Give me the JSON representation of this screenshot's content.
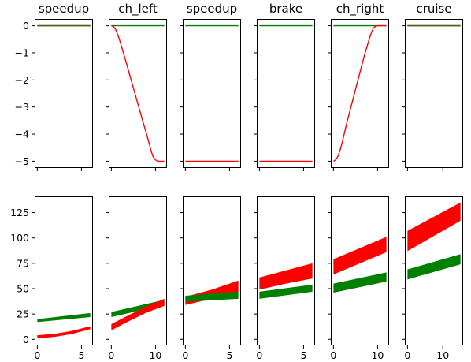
{
  "figure": {
    "title": "",
    "colors": {
      "red": "#ff0000",
      "green": "#008000",
      "overlap": "#5a5a1e",
      "axes": "#000000"
    }
  },
  "chart_data": [
    {
      "type": "line",
      "row": 1,
      "column": 1,
      "title": "speedup",
      "xlim": [
        -0.3,
        6.3
      ],
      "ylim": [
        -5.25,
        0.25
      ],
      "show_y_ticks": true,
      "series": [
        {
          "color": "red",
          "points": [
            [
              0,
              0
            ],
            [
              6,
              0
            ]
          ]
        },
        {
          "color": "green",
          "points": [
            [
              0,
              0
            ],
            [
              6,
              0
            ]
          ]
        }
      ]
    },
    {
      "type": "line",
      "row": 1,
      "column": 2,
      "title": "ch_left",
      "xlim": [
        -0.6,
        12.6
      ],
      "ylim": [
        -5.25,
        0.25
      ],
      "show_y_ticks": false,
      "series": [
        {
          "color": "green",
          "points": [
            [
              0,
              0
            ],
            [
              12,
              0
            ]
          ]
        },
        {
          "color": "red",
          "points": [
            [
              0,
              0
            ],
            [
              0.5,
              -0.03
            ],
            [
              1,
              -0.15
            ],
            [
              1.5,
              -0.35
            ],
            [
              2,
              -0.6
            ],
            [
              3,
              -1.15
            ],
            [
              5,
              -2.3
            ],
            [
              7,
              -3.45
            ],
            [
              8.5,
              -4.3
            ],
            [
              9,
              -4.62
            ],
            [
              9.5,
              -4.85
            ],
            [
              10,
              -4.95
            ],
            [
              10.5,
              -5.0
            ],
            [
              12,
              -5.0
            ]
          ]
        }
      ]
    },
    {
      "type": "line",
      "row": 1,
      "column": 3,
      "title": "speedup",
      "xlim": [
        -0.3,
        6.3
      ],
      "ylim": [
        -5.25,
        0.25
      ],
      "show_y_ticks": false,
      "series": [
        {
          "color": "green",
          "points": [
            [
              0,
              0
            ],
            [
              6,
              0
            ]
          ]
        },
        {
          "color": "red",
          "points": [
            [
              0,
              -5
            ],
            [
              6,
              -5
            ]
          ]
        }
      ]
    },
    {
      "type": "line",
      "row": 1,
      "column": 4,
      "title": "brake",
      "xlim": [
        -0.3,
        6.3
      ],
      "ylim": [
        -5.25,
        0.25
      ],
      "show_y_ticks": false,
      "series": [
        {
          "color": "green",
          "points": [
            [
              0,
              0
            ],
            [
              6,
              0
            ]
          ]
        },
        {
          "color": "red",
          "points": [
            [
              0,
              -5
            ],
            [
              6,
              -5
            ]
          ]
        }
      ]
    },
    {
      "type": "line",
      "row": 1,
      "column": 5,
      "title": "ch_right",
      "xlim": [
        -0.6,
        12.6
      ],
      "ylim": [
        -5.25,
        0.25
      ],
      "show_y_ticks": false,
      "series": [
        {
          "color": "green",
          "points": [
            [
              0,
              0
            ],
            [
              12,
              0
            ]
          ]
        },
        {
          "color": "red",
          "points": [
            [
              0,
              -5
            ],
            [
              0.5,
              -4.95
            ],
            [
              1,
              -4.82
            ],
            [
              1.5,
              -4.6
            ],
            [
              2,
              -4.3
            ],
            [
              3,
              -3.6
            ],
            [
              5,
              -2.35
            ],
            [
              7,
              -1.1
            ],
            [
              8,
              -0.55
            ],
            [
              8.5,
              -0.3
            ],
            [
              9,
              -0.1
            ],
            [
              9.5,
              -0.02
            ],
            [
              10,
              0
            ],
            [
              12,
              0
            ]
          ]
        }
      ]
    },
    {
      "type": "line",
      "row": 1,
      "column": 6,
      "title": "cruise",
      "xlim": [
        -0.75,
        15.75
      ],
      "ylim": [
        -5.25,
        0.25
      ],
      "show_y_ticks": false,
      "series": [
        {
          "color": "red",
          "points": [
            [
              0,
              0
            ],
            [
              15,
              0
            ]
          ]
        },
        {
          "color": "green",
          "points": [
            [
              0,
              0
            ],
            [
              15,
              0
            ]
          ]
        }
      ]
    },
    {
      "type": "area",
      "row": 2,
      "column": 1,
      "title": "",
      "xlim": [
        -0.3,
        6.3
      ],
      "ylim": [
        -6,
        141
      ],
      "show_y_ticks": true,
      "series": [
        {
          "color": "green",
          "bands": [
            [
              0,
              17,
              20
            ],
            [
              6,
              22,
              26
            ]
          ]
        },
        {
          "color": "red",
          "bands": [
            [
              0,
              1,
              4
            ],
            [
              2,
              2.5,
              5.5
            ],
            [
              4,
              5.5,
              8.5
            ],
            [
              6,
              10,
              13
            ]
          ]
        }
      ]
    },
    {
      "type": "area",
      "row": 2,
      "column": 2,
      "title": "",
      "xlim": [
        -0.6,
        12.6
      ],
      "ylim": [
        -6,
        141
      ],
      "show_y_ticks": false,
      "series": [
        {
          "color": "green",
          "bands": [
            [
              0,
              22,
              27
            ],
            [
              12,
              34,
              39
            ]
          ]
        },
        {
          "color": "red",
          "bands": [
            [
              0,
              9,
              15
            ],
            [
              4,
              18,
              24
            ],
            [
              8,
              26.5,
              32.5
            ],
            [
              12,
              33,
              40
            ]
          ]
        }
      ]
    },
    {
      "type": "area",
      "row": 2,
      "column": 3,
      "title": "",
      "xlim": [
        -0.3,
        6.3
      ],
      "ylim": [
        -6,
        141
      ],
      "show_y_ticks": false,
      "series": [
        {
          "color": "red",
          "bands": [
            [
              0,
              34,
              42
            ],
            [
              3,
              40,
              49
            ],
            [
              6,
              47,
              58
            ]
          ]
        },
        {
          "color": "green",
          "bands": [
            [
              0,
              37,
              43
            ],
            [
              6,
              40,
              47
            ]
          ]
        }
      ]
    },
    {
      "type": "area",
      "row": 2,
      "column": 4,
      "title": "",
      "xlim": [
        -0.3,
        6.3
      ],
      "ylim": [
        -6,
        141
      ],
      "show_y_ticks": false,
      "series": [
        {
          "color": "red",
          "bands": [
            [
              0,
              49,
              61
            ],
            [
              3,
              55,
              68
            ],
            [
              6,
              60,
              75
            ]
          ]
        },
        {
          "color": "green",
          "bands": [
            [
              0,
              40,
              47
            ],
            [
              6,
              47,
              54
            ]
          ]
        }
      ]
    },
    {
      "type": "area",
      "row": 2,
      "column": 5,
      "title": "",
      "xlim": [
        -0.6,
        12.6
      ],
      "ylim": [
        -6,
        141
      ],
      "show_y_ticks": false,
      "series": [
        {
          "color": "red",
          "bands": [
            [
              0,
              64,
              79
            ],
            [
              12,
              86,
              101
            ]
          ]
        },
        {
          "color": "green",
          "bands": [
            [
              0,
              46,
              55
            ],
            [
              12,
              57,
              66
            ]
          ]
        }
      ]
    },
    {
      "type": "area",
      "row": 2,
      "column": 6,
      "title": "",
      "xlim": [
        -0.75,
        15.75
      ],
      "ylim": [
        -6,
        141
      ],
      "show_y_ticks": false,
      "series": [
        {
          "color": "red",
          "bands": [
            [
              0,
              87,
              107
            ],
            [
              15,
              117,
              135
            ]
          ]
        },
        {
          "color": "green",
          "bands": [
            [
              0,
              59,
              69
            ],
            [
              15,
              74,
              84
            ]
          ]
        }
      ]
    }
  ],
  "axes_ticks": {
    "row1_y": {
      "values": [
        0,
        -1,
        -2,
        -3,
        -4,
        -5
      ],
      "labels": [
        "0",
        "−1",
        "−2",
        "−3",
        "−4",
        "−5"
      ]
    },
    "row2_y": {
      "values": [
        0,
        25,
        50,
        75,
        100,
        125
      ],
      "labels": [
        "0",
        "25",
        "50",
        "75",
        "100",
        "125"
      ]
    },
    "x_ticks": {
      "short": {
        "values": [
          0,
          5
        ],
        "labels": [
          "0",
          "5"
        ]
      },
      "medium": {
        "values": [
          0,
          10
        ],
        "labels": [
          "0",
          "10"
        ]
      },
      "long": {
        "values": [
          0,
          10
        ],
        "labels": [
          "0",
          "10"
        ]
      }
    },
    "column_x_kind": [
      "short",
      "medium",
      "short",
      "short",
      "medium",
      "long"
    ]
  }
}
